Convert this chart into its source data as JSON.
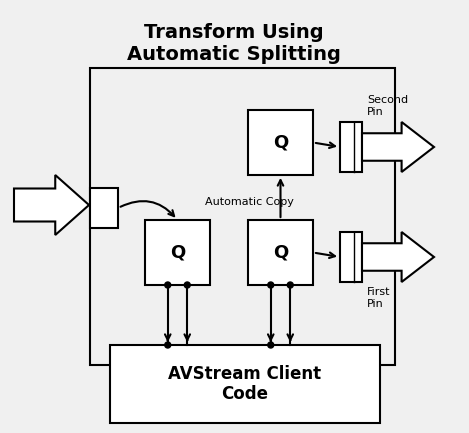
{
  "title": "Transform Using\nAutomatic Splitting",
  "title_fontsize": 14,
  "bg_color": "#f0f0f0",
  "box_color": "#ffffff",
  "line_color": "#000000",
  "avstream_label": "AVStream Client\nCode",
  "auto_copy_label": "Automatic Copy",
  "second_pin_label": "Second\nPin",
  "first_pin_label": "First\nPin",
  "q_label": "Q"
}
